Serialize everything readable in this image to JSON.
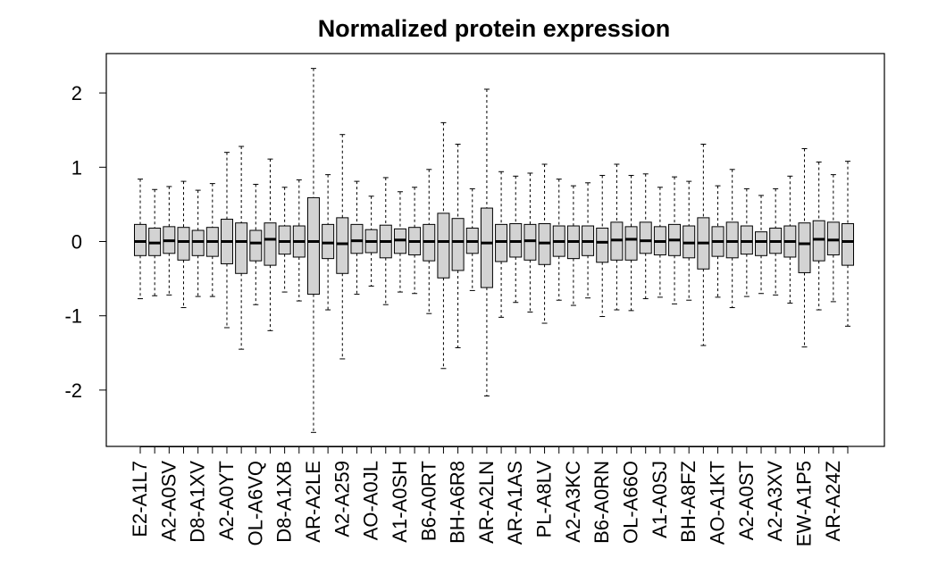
{
  "chart_data": {
    "type": "boxplot",
    "title": "Normalized protein expression",
    "xlabel": "",
    "ylabel": "",
    "ylim": [
      -2.8,
      2.5
    ],
    "yticks": [
      -2,
      -1,
      0,
      1,
      2
    ],
    "categories": [
      "E2-A1L7",
      "",
      "A2-A0SV",
      "",
      "D8-A1XV",
      "",
      "A2-A0YT",
      "",
      "OL-A6VQ",
      "",
      "D8-A1XB",
      "",
      "AR-A2LE",
      "",
      "A2-A259",
      "",
      "AO-A0JL",
      "",
      "A1-A0SH",
      "",
      "B6-A0RT",
      "",
      "BH-A6R8",
      "",
      "AR-A2LN",
      "",
      "AR-A1AS",
      "",
      "PL-A8LV",
      "",
      "A2-A3KC",
      "",
      "B6-A0RN",
      "",
      "OL-A66O",
      "",
      "A1-A0SJ",
      "",
      "BH-A8FZ",
      "",
      "AO-A1KT",
      "",
      "A2-A0ST",
      "",
      "A2-A3XV",
      "",
      "EW-A1P5",
      "",
      "AR-A24Z",
      ""
    ],
    "series": [
      {
        "values": [
          {
            "whisker_low": -0.77,
            "q1": -0.19,
            "median": 0.0,
            "q3": 0.23,
            "whisker_high": 0.84
          },
          {
            "whisker_low": -0.73,
            "q1": -0.19,
            "median": -0.02,
            "q3": 0.18,
            "whisker_high": 0.7
          },
          {
            "whisker_low": -0.72,
            "q1": -0.16,
            "median": 0.01,
            "q3": 0.2,
            "whisker_high": 0.74
          },
          {
            "whisker_low": -0.89,
            "q1": -0.25,
            "median": 0.0,
            "q3": 0.19,
            "whisker_high": 0.81
          },
          {
            "whisker_low": -0.74,
            "q1": -0.19,
            "median": 0.0,
            "q3": 0.15,
            "whisker_high": 0.69
          },
          {
            "whisker_low": -0.74,
            "q1": -0.2,
            "median": 0.0,
            "q3": 0.19,
            "whisker_high": 0.78
          },
          {
            "whisker_low": -1.16,
            "q1": -0.3,
            "median": 0.0,
            "q3": 0.3,
            "whisker_high": 1.2
          },
          {
            "whisker_low": -1.45,
            "q1": -0.43,
            "median": 0.0,
            "q3": 0.25,
            "whisker_high": 1.28
          },
          {
            "whisker_low": -0.85,
            "q1": -0.26,
            "median": -0.02,
            "q3": 0.15,
            "whisker_high": 0.77
          },
          {
            "whisker_low": -1.2,
            "q1": -0.32,
            "median": 0.03,
            "q3": 0.25,
            "whisker_high": 1.11
          },
          {
            "whisker_low": -0.68,
            "q1": -0.17,
            "median": 0.0,
            "q3": 0.21,
            "whisker_high": 0.73
          },
          {
            "whisker_low": -0.8,
            "q1": -0.21,
            "median": 0.0,
            "q3": 0.21,
            "whisker_high": 0.83
          },
          {
            "whisker_low": -2.57,
            "q1": -0.71,
            "median": 0.0,
            "q3": 0.59,
            "whisker_high": 2.33
          },
          {
            "whisker_low": -0.92,
            "q1": -0.23,
            "median": -0.02,
            "q3": 0.23,
            "whisker_high": 0.9
          },
          {
            "whisker_low": -1.58,
            "q1": -0.43,
            "median": -0.03,
            "q3": 0.32,
            "whisker_high": 1.44
          },
          {
            "whisker_low": -0.71,
            "q1": -0.16,
            "median": 0.01,
            "q3": 0.23,
            "whisker_high": 0.81
          },
          {
            "whisker_low": -0.6,
            "q1": -0.15,
            "median": 0.0,
            "q3": 0.16,
            "whisker_high": 0.61
          },
          {
            "whisker_low": -0.85,
            "q1": -0.22,
            "median": 0.0,
            "q3": 0.22,
            "whisker_high": 0.86
          },
          {
            "whisker_low": -0.68,
            "q1": -0.16,
            "median": 0.02,
            "q3": 0.17,
            "whisker_high": 0.67
          },
          {
            "whisker_low": -0.7,
            "q1": -0.18,
            "median": 0.0,
            "q3": 0.19,
            "whisker_high": 0.73
          },
          {
            "whisker_low": -0.97,
            "q1": -0.26,
            "median": 0.0,
            "q3": 0.23,
            "whisker_high": 0.97
          },
          {
            "whisker_low": -1.71,
            "q1": -0.49,
            "median": 0.0,
            "q3": 0.38,
            "whisker_high": 1.6
          },
          {
            "whisker_low": -1.43,
            "q1": -0.39,
            "median": 0.0,
            "q3": 0.31,
            "whisker_high": 1.31
          },
          {
            "whisker_low": -0.66,
            "q1": -0.16,
            "median": 0.0,
            "q3": 0.18,
            "whisker_high": 0.71
          },
          {
            "whisker_low": -2.08,
            "q1": -0.62,
            "median": -0.02,
            "q3": 0.45,
            "whisker_high": 2.05
          },
          {
            "whisker_low": -1.02,
            "q1": -0.27,
            "median": 0.0,
            "q3": 0.23,
            "whisker_high": 0.94
          },
          {
            "whisker_low": -0.82,
            "q1": -0.21,
            "median": 0.0,
            "q3": 0.24,
            "whisker_high": 0.88
          },
          {
            "whisker_low": -0.95,
            "q1": -0.25,
            "median": 0.01,
            "q3": 0.23,
            "whisker_high": 0.92
          },
          {
            "whisker_low": -1.1,
            "q1": -0.31,
            "median": -0.02,
            "q3": 0.24,
            "whisker_high": 1.04
          },
          {
            "whisker_low": -0.79,
            "q1": -0.2,
            "median": 0.0,
            "q3": 0.21,
            "whisker_high": 0.84
          },
          {
            "whisker_low": -0.86,
            "q1": -0.23,
            "median": 0.0,
            "q3": 0.21,
            "whisker_high": 0.75
          },
          {
            "whisker_low": -0.76,
            "q1": -0.19,
            "median": 0.0,
            "q3": 0.21,
            "whisker_high": 0.79
          },
          {
            "whisker_low": -1.01,
            "q1": -0.28,
            "median": -0.01,
            "q3": 0.18,
            "whisker_high": 0.89
          },
          {
            "whisker_low": -0.92,
            "q1": -0.25,
            "median": 0.02,
            "q3": 0.26,
            "whisker_high": 1.04
          },
          {
            "whisker_low": -0.93,
            "q1": -0.25,
            "median": 0.03,
            "q3": 0.2,
            "whisker_high": 0.89
          },
          {
            "whisker_low": -0.77,
            "q1": -0.16,
            "median": 0.01,
            "q3": 0.26,
            "whisker_high": 0.91
          },
          {
            "whisker_low": -0.75,
            "q1": -0.18,
            "median": 0.0,
            "q3": 0.2,
            "whisker_high": 0.73
          },
          {
            "whisker_low": -0.84,
            "q1": -0.19,
            "median": 0.02,
            "q3": 0.23,
            "whisker_high": 0.87
          },
          {
            "whisker_low": -0.79,
            "q1": -0.22,
            "median": -0.02,
            "q3": 0.21,
            "whisker_high": 0.81
          },
          {
            "whisker_low": -1.4,
            "q1": -0.37,
            "median": -0.02,
            "q3": 0.32,
            "whisker_high": 1.31
          },
          {
            "whisker_low": -0.75,
            "q1": -0.2,
            "median": 0.0,
            "q3": 0.2,
            "whisker_high": 0.75
          },
          {
            "whisker_low": -0.89,
            "q1": -0.22,
            "median": 0.0,
            "q3": 0.26,
            "whisker_high": 0.97
          },
          {
            "whisker_low": -0.74,
            "q1": -0.17,
            "median": 0.0,
            "q3": 0.21,
            "whisker_high": 0.71
          },
          {
            "whisker_low": -0.7,
            "q1": -0.19,
            "median": 0.0,
            "q3": 0.13,
            "whisker_high": 0.62
          },
          {
            "whisker_low": -0.72,
            "q1": -0.16,
            "median": 0.0,
            "q3": 0.18,
            "whisker_high": 0.71
          },
          {
            "whisker_low": -0.83,
            "q1": -0.21,
            "median": 0.0,
            "q3": 0.21,
            "whisker_high": 0.88
          },
          {
            "whisker_low": -1.42,
            "q1": -0.42,
            "median": -0.03,
            "q3": 0.25,
            "whisker_high": 1.25
          },
          {
            "whisker_low": -0.92,
            "q1": -0.26,
            "median": 0.03,
            "q3": 0.28,
            "whisker_high": 1.07
          },
          {
            "whisker_low": -0.81,
            "q1": -0.18,
            "median": 0.02,
            "q3": 0.26,
            "whisker_high": 0.9
          },
          {
            "whisker_low": -1.14,
            "q1": -0.32,
            "median": 0.0,
            "q3": 0.24,
            "whisker_high": 1.08
          }
        ]
      }
    ],
    "colors": {
      "box_fill": "#d3d3d3",
      "line": "#000000",
      "background": "#ffffff"
    },
    "grid": false,
    "legend": "none"
  }
}
